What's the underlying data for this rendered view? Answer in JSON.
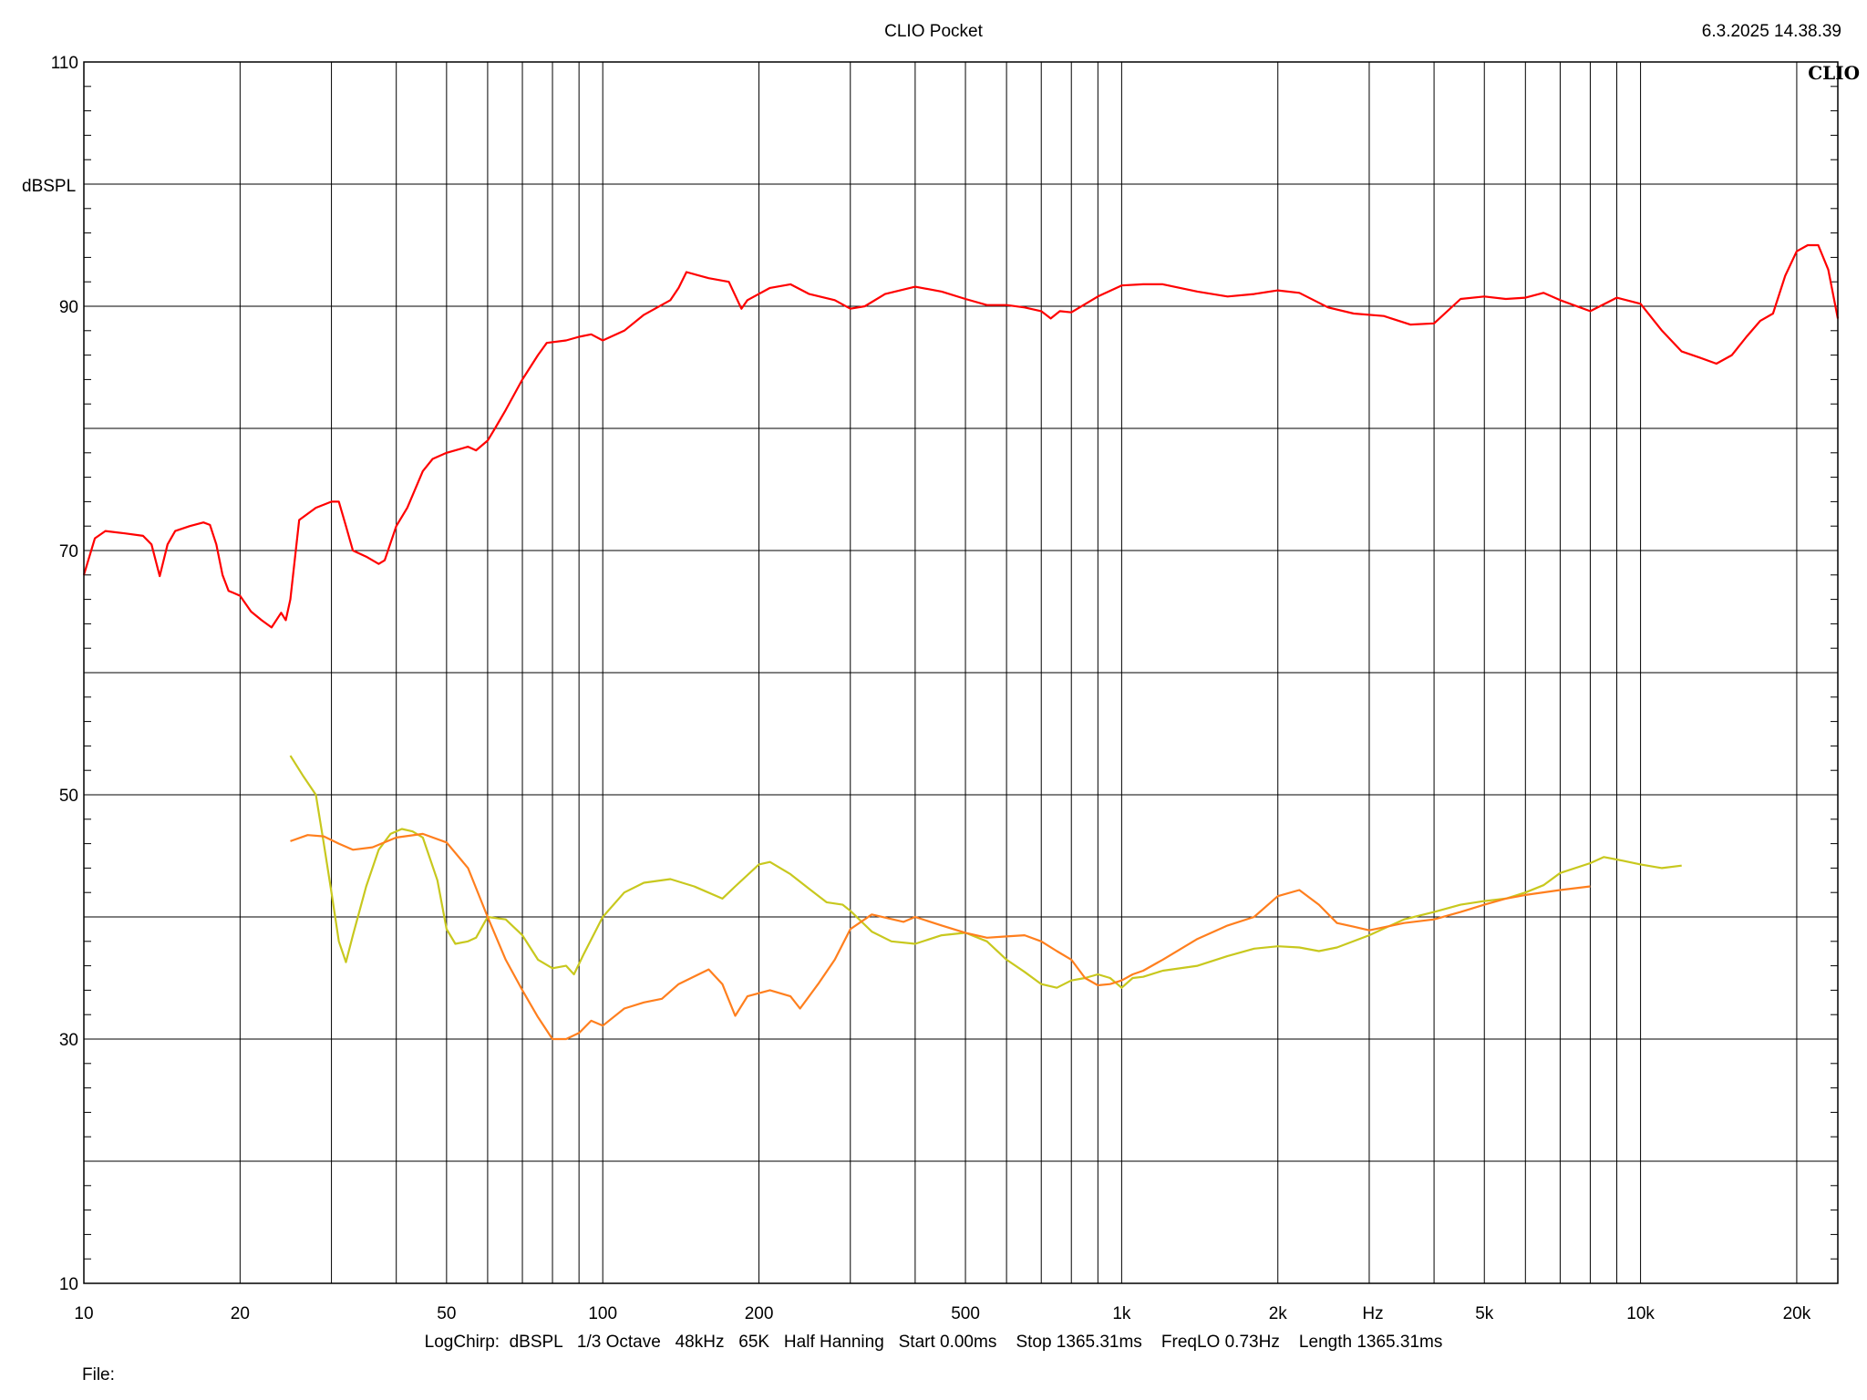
{
  "header": {
    "title": "CLIO Pocket",
    "timestamp": "6.3.2025 14.38.39",
    "logo": "CLIO"
  },
  "footer": {
    "settings": "LogChirp:  dBSPL   1/3 Octave   48kHz   65K   Half Hanning   Start 0.00ms    Stop 1365.31ms    FreqLO 0.73Hz    Length 1365.31ms",
    "file_label": "File:"
  },
  "chart_data": {
    "type": "line",
    "title": "CLIO Pocket",
    "xlabel": "Hz",
    "ylabel": "dBSPL",
    "x_scale": "log",
    "xlim": [
      10,
      24000
    ],
    "ylim": [
      10,
      110
    ],
    "grid": true,
    "x_tick_labels": [
      {
        "value": 10,
        "label": "10"
      },
      {
        "value": 20,
        "label": "20"
      },
      {
        "value": 50,
        "label": "50"
      },
      {
        "value": 100,
        "label": "100"
      },
      {
        "value": 200,
        "label": "200"
      },
      {
        "value": 500,
        "label": "500"
      },
      {
        "value": 1000,
        "label": "1k"
      },
      {
        "value": 2000,
        "label": "2k"
      },
      {
        "value": 5000,
        "label": "5k"
      },
      {
        "value": 10000,
        "label": "10k"
      },
      {
        "value": 20000,
        "label": "20k"
      }
    ],
    "y_tick_labels": [
      {
        "value": 110,
        "label": "110"
      },
      {
        "value": 90,
        "label": "90"
      },
      {
        "value": 70,
        "label": "70"
      },
      {
        "value": 50,
        "label": "50"
      },
      {
        "value": 30,
        "label": "30"
      },
      {
        "value": 10,
        "label": "10"
      }
    ],
    "series": [
      {
        "color": "#ff0000",
        "points": [
          [
            10,
            68
          ],
          [
            10.5,
            71
          ],
          [
            11,
            71.6
          ],
          [
            12,
            71.4
          ],
          [
            13,
            71.2
          ],
          [
            13.5,
            70.5
          ],
          [
            14,
            67.9
          ],
          [
            14.5,
            70.5
          ],
          [
            15,
            71.6
          ],
          [
            16,
            72
          ],
          [
            17,
            72.3
          ],
          [
            17.5,
            72.1
          ],
          [
            18,
            70.5
          ],
          [
            18.5,
            68
          ],
          [
            19,
            66.7
          ],
          [
            20,
            66.3
          ],
          [
            21,
            65
          ],
          [
            22,
            64.3
          ],
          [
            23,
            63.7
          ],
          [
            24,
            64.9
          ],
          [
            24.5,
            64.3
          ],
          [
            25,
            66
          ],
          [
            26,
            72.5
          ],
          [
            28,
            73.5
          ],
          [
            30,
            74
          ],
          [
            31,
            74
          ],
          [
            32,
            72
          ],
          [
            33,
            70
          ],
          [
            35,
            69.5
          ],
          [
            37,
            68.9
          ],
          [
            38,
            69.2
          ],
          [
            40,
            72
          ],
          [
            42,
            73.5
          ],
          [
            45,
            76.5
          ],
          [
            47,
            77.5
          ],
          [
            50,
            78
          ],
          [
            55,
            78.5
          ],
          [
            57,
            78.2
          ],
          [
            60,
            79
          ],
          [
            62,
            80
          ],
          [
            65,
            81.5
          ],
          [
            70,
            84
          ],
          [
            75,
            86
          ],
          [
            78,
            87
          ],
          [
            85,
            87.2
          ],
          [
            90,
            87.5
          ],
          [
            95,
            87.7
          ],
          [
            100,
            87.2
          ],
          [
            110,
            88
          ],
          [
            120,
            89.3
          ],
          [
            135,
            90.5
          ],
          [
            140,
            91.5
          ],
          [
            145,
            92.8
          ],
          [
            160,
            92.3
          ],
          [
            175,
            92
          ],
          [
            185,
            89.8
          ],
          [
            190,
            90.5
          ],
          [
            210,
            91.5
          ],
          [
            230,
            91.8
          ],
          [
            250,
            91
          ],
          [
            280,
            90.5
          ],
          [
            300,
            89.8
          ],
          [
            320,
            90
          ],
          [
            350,
            91
          ],
          [
            400,
            91.6
          ],
          [
            450,
            91.2
          ],
          [
            500,
            90.6
          ],
          [
            550,
            90.1
          ],
          [
            600,
            90.1
          ],
          [
            650,
            89.9
          ],
          [
            700,
            89.6
          ],
          [
            730,
            89
          ],
          [
            760,
            89.6
          ],
          [
            800,
            89.5
          ],
          [
            900,
            90.8
          ],
          [
            1000,
            91.7
          ],
          [
            1100,
            91.8
          ],
          [
            1200,
            91.8
          ],
          [
            1400,
            91.2
          ],
          [
            1600,
            90.8
          ],
          [
            1800,
            91
          ],
          [
            2000,
            91.3
          ],
          [
            2200,
            91.1
          ],
          [
            2500,
            89.9
          ],
          [
            2800,
            89.4
          ],
          [
            3200,
            89.2
          ],
          [
            3600,
            88.5
          ],
          [
            4000,
            88.6
          ],
          [
            4500,
            90.6
          ],
          [
            5000,
            90.8
          ],
          [
            5500,
            90.6
          ],
          [
            6000,
            90.7
          ],
          [
            6500,
            91.1
          ],
          [
            7000,
            90.5
          ],
          [
            8000,
            89.6
          ],
          [
            9000,
            90.7
          ],
          [
            10000,
            90.2
          ],
          [
            11000,
            88
          ],
          [
            12000,
            86.3
          ],
          [
            13000,
            85.8
          ],
          [
            14000,
            85.3
          ],
          [
            15000,
            86
          ],
          [
            16000,
            87.5
          ],
          [
            17000,
            88.8
          ],
          [
            18000,
            89.4
          ],
          [
            19000,
            92.5
          ],
          [
            20000,
            94.5
          ],
          [
            21000,
            95
          ],
          [
            22000,
            95
          ],
          [
            23000,
            93
          ],
          [
            24000,
            89
          ]
        ]
      },
      {
        "color": "#c8c81e",
        "points": [
          [
            25,
            53.2
          ],
          [
            26.5,
            51.5
          ],
          [
            28,
            50
          ],
          [
            29,
            46
          ],
          [
            30,
            42
          ],
          [
            31,
            38
          ],
          [
            32,
            36.3
          ],
          [
            33,
            38.5
          ],
          [
            35,
            42.5
          ],
          [
            37,
            45.5
          ],
          [
            39,
            46.8
          ],
          [
            41,
            47.2
          ],
          [
            43,
            47
          ],
          [
            45,
            46.5
          ],
          [
            48,
            43
          ],
          [
            50,
            39
          ],
          [
            52,
            37.8
          ],
          [
            55,
            38
          ],
          [
            57,
            38.3
          ],
          [
            60,
            40
          ],
          [
            65,
            39.8
          ],
          [
            70,
            38.5
          ],
          [
            75,
            36.5
          ],
          [
            80,
            35.8
          ],
          [
            85,
            36
          ],
          [
            88,
            35.3
          ],
          [
            92,
            37
          ],
          [
            100,
            40
          ],
          [
            110,
            42
          ],
          [
            120,
            42.8
          ],
          [
            135,
            43.1
          ],
          [
            150,
            42.5
          ],
          [
            170,
            41.5
          ],
          [
            180,
            42.5
          ],
          [
            200,
            44.3
          ],
          [
            210,
            44.5
          ],
          [
            230,
            43.5
          ],
          [
            250,
            42.3
          ],
          [
            270,
            41.2
          ],
          [
            290,
            41
          ],
          [
            300,
            40.5
          ],
          [
            330,
            38.8
          ],
          [
            360,
            38
          ],
          [
            400,
            37.8
          ],
          [
            450,
            38.5
          ],
          [
            500,
            38.7
          ],
          [
            550,
            38
          ],
          [
            600,
            36.5
          ],
          [
            650,
            35.5
          ],
          [
            700,
            34.5
          ],
          [
            750,
            34.2
          ],
          [
            800,
            34.8
          ],
          [
            850,
            35
          ],
          [
            900,
            35.3
          ],
          [
            950,
            35
          ],
          [
            1000,
            34.2
          ],
          [
            1050,
            35
          ],
          [
            1100,
            35.1
          ],
          [
            1200,
            35.6
          ],
          [
            1400,
            36
          ],
          [
            1600,
            36.8
          ],
          [
            1800,
            37.4
          ],
          [
            2000,
            37.6
          ],
          [
            2200,
            37.5
          ],
          [
            2400,
            37.2
          ],
          [
            2600,
            37.5
          ],
          [
            3000,
            38.5
          ],
          [
            3500,
            39.8
          ],
          [
            4000,
            40.4
          ],
          [
            4500,
            41
          ],
          [
            5000,
            41.3
          ],
          [
            5500,
            41.5
          ],
          [
            6000,
            42
          ],
          [
            6500,
            42.6
          ],
          [
            7000,
            43.6
          ],
          [
            8000,
            44.4
          ],
          [
            8500,
            44.9
          ],
          [
            9000,
            44.7
          ],
          [
            10000,
            44.3
          ],
          [
            11000,
            44
          ],
          [
            12000,
            44.2
          ]
        ]
      },
      {
        "color": "#ff7f1e",
        "points": [
          [
            25,
            46.2
          ],
          [
            27,
            46.7
          ],
          [
            29,
            46.6
          ],
          [
            31,
            46
          ],
          [
            33,
            45.5
          ],
          [
            36,
            45.7
          ],
          [
            40,
            46.5
          ],
          [
            45,
            46.8
          ],
          [
            50,
            46.1
          ],
          [
            55,
            44
          ],
          [
            60,
            40
          ],
          [
            65,
            36.5
          ],
          [
            70,
            34
          ],
          [
            75,
            31.8
          ],
          [
            80,
            30
          ],
          [
            85,
            30
          ],
          [
            90,
            30.5
          ],
          [
            95,
            31.5
          ],
          [
            100,
            31.1
          ],
          [
            110,
            32.5
          ],
          [
            120,
            33
          ],
          [
            130,
            33.3
          ],
          [
            140,
            34.5
          ],
          [
            160,
            35.7
          ],
          [
            170,
            34.5
          ],
          [
            180,
            31.9
          ],
          [
            190,
            33.5
          ],
          [
            210,
            34
          ],
          [
            230,
            33.5
          ],
          [
            240,
            32.5
          ],
          [
            260,
            34.5
          ],
          [
            280,
            36.5
          ],
          [
            300,
            39
          ],
          [
            330,
            40.2
          ],
          [
            380,
            39.6
          ],
          [
            400,
            40
          ],
          [
            450,
            39.3
          ],
          [
            500,
            38.7
          ],
          [
            550,
            38.3
          ],
          [
            600,
            38.4
          ],
          [
            650,
            38.5
          ],
          [
            700,
            38
          ],
          [
            750,
            37.2
          ],
          [
            800,
            36.5
          ],
          [
            850,
            35
          ],
          [
            900,
            34.4
          ],
          [
            950,
            34.5
          ],
          [
            1000,
            34.8
          ],
          [
            1050,
            35.3
          ],
          [
            1100,
            35.6
          ],
          [
            1200,
            36.5
          ],
          [
            1400,
            38.2
          ],
          [
            1600,
            39.3
          ],
          [
            1800,
            40
          ],
          [
            2000,
            41.7
          ],
          [
            2200,
            42.2
          ],
          [
            2400,
            41
          ],
          [
            2600,
            39.5
          ],
          [
            2800,
            39.2
          ],
          [
            3000,
            38.9
          ],
          [
            3500,
            39.5
          ],
          [
            4000,
            39.8
          ],
          [
            4500,
            40.4
          ],
          [
            5000,
            41
          ],
          [
            5500,
            41.5
          ],
          [
            6000,
            41.8
          ],
          [
            7000,
            42.2
          ],
          [
            8000,
            42.5
          ]
        ]
      }
    ]
  }
}
